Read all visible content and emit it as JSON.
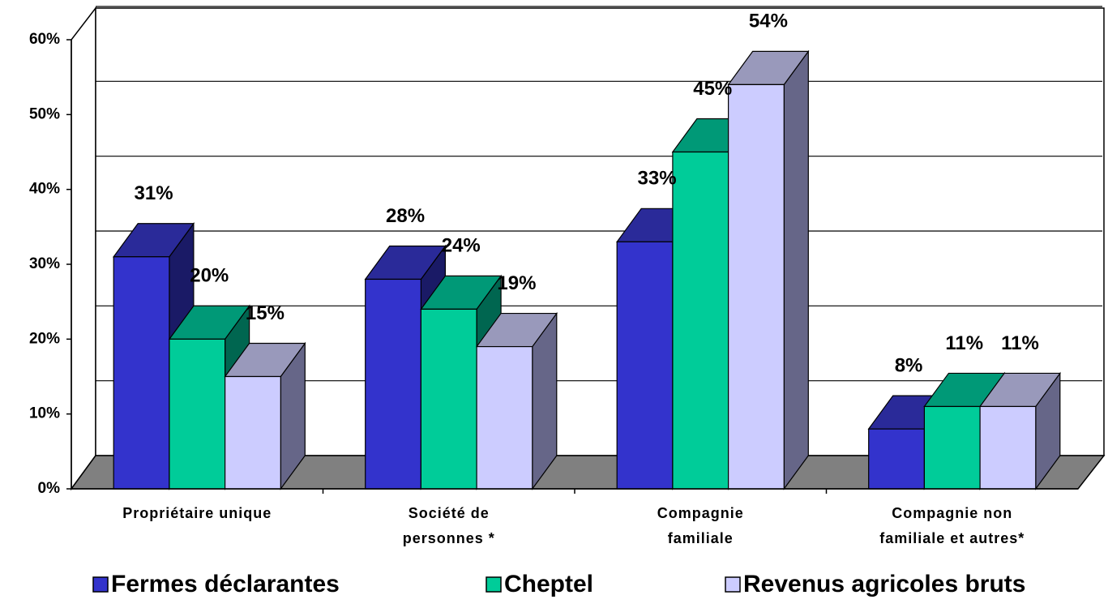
{
  "chart_data": {
    "type": "bar3d",
    "categories": [
      [
        "Propriétaire unique"
      ],
      [
        "Société de",
        "personnes *"
      ],
      [
        "Compagnie",
        "familiale"
      ],
      [
        "Compagnie non",
        "familiale et autres*"
      ]
    ],
    "series": [
      {
        "name": "Fermes déclarantes",
        "color": "#3333cc",
        "top_color": "#2a2a99",
        "side_color": "#1a1a66",
        "values": [
          31,
          28,
          33,
          8
        ],
        "value_labels": [
          "31%",
          "28%",
          "33%",
          "8%"
        ]
      },
      {
        "name": "Cheptel",
        "color": "#00cc99",
        "top_color": "#009977",
        "side_color": "#006650",
        "values": [
          20,
          24,
          45,
          11
        ],
        "value_labels": [
          "20%",
          "24%",
          "45%",
          "11%"
        ]
      },
      {
        "name": "Revenus agricoles bruts",
        "color": "#ccccff",
        "top_color": "#9999bb",
        "side_color": "#666688",
        "values": [
          15,
          19,
          54,
          11
        ],
        "value_labels": [
          "15%",
          "19%",
          "54%",
          "11%"
        ]
      }
    ],
    "ylim": [
      0,
      60
    ],
    "yticks": [
      {
        "value": 0,
        "label": "0%"
      },
      {
        "value": 10,
        "label": "10%"
      },
      {
        "value": 20,
        "label": "20%"
      },
      {
        "value": 30,
        "label": "30%"
      },
      {
        "value": 40,
        "label": "40%"
      },
      {
        "value": 50,
        "label": "50%"
      },
      {
        "value": 60,
        "label": "60%"
      }
    ],
    "grid": true,
    "legend": "bottom"
  }
}
